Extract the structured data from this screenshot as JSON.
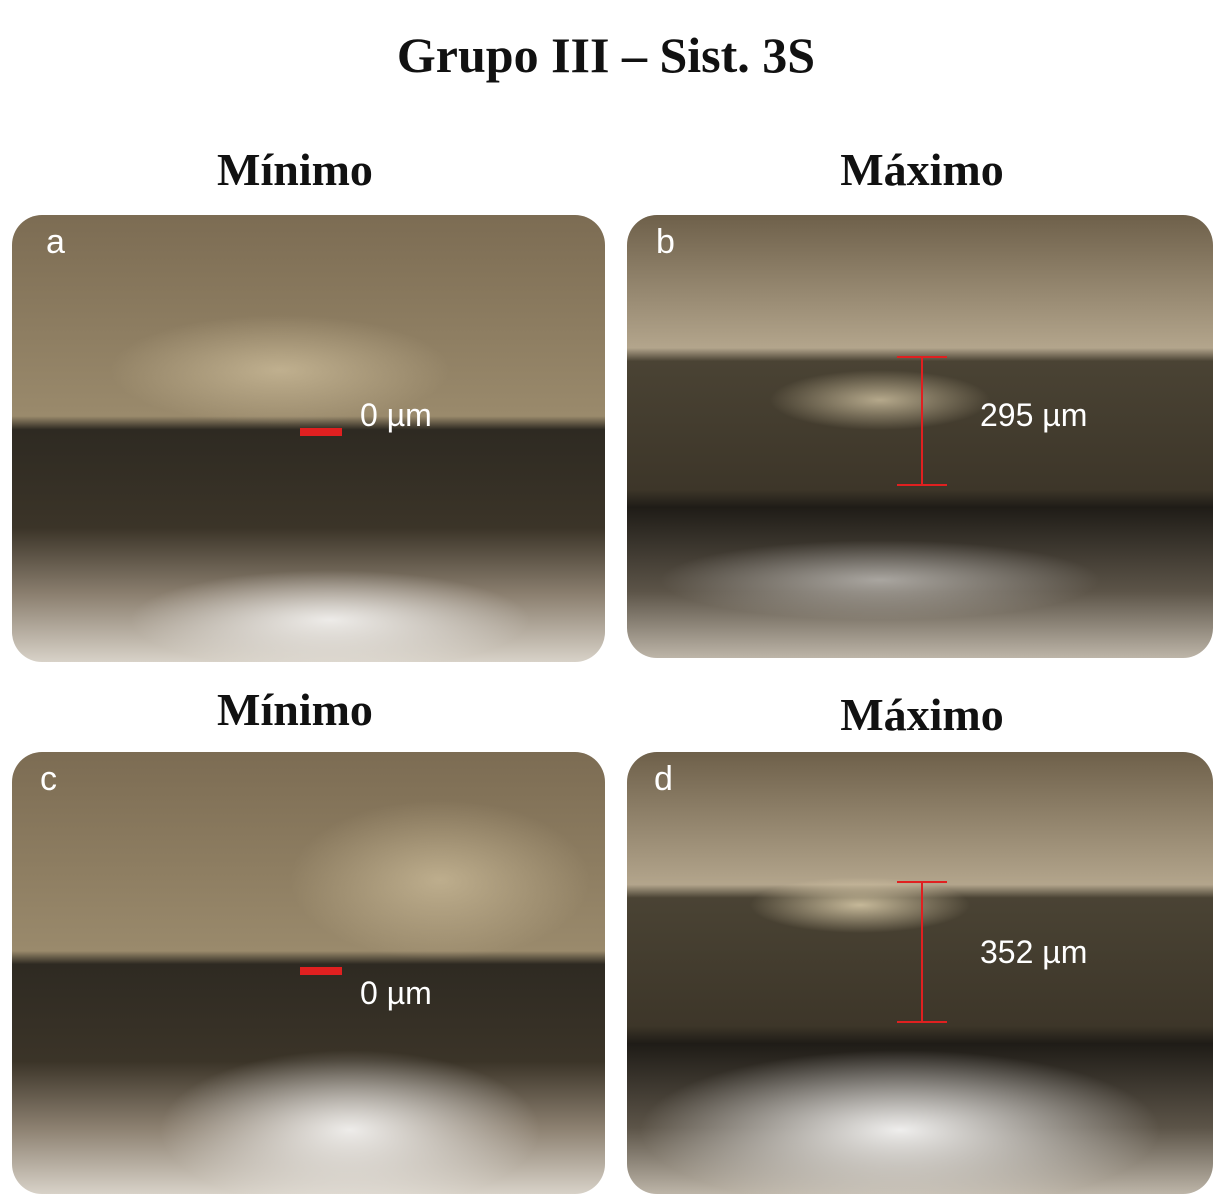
{
  "title": "Grupo III – Sist. 3S",
  "panels": [
    {
      "heading": "Mínimo",
      "letter": "a",
      "measurement": "0 µm"
    },
    {
      "heading": "Máximo",
      "letter": "b",
      "measurement": "295 µm"
    },
    {
      "heading": "Mínimo",
      "letter": "c",
      "measurement": "0 µm"
    },
    {
      "heading": "Máximo",
      "letter": "d",
      "measurement": "352 µm"
    }
  ]
}
